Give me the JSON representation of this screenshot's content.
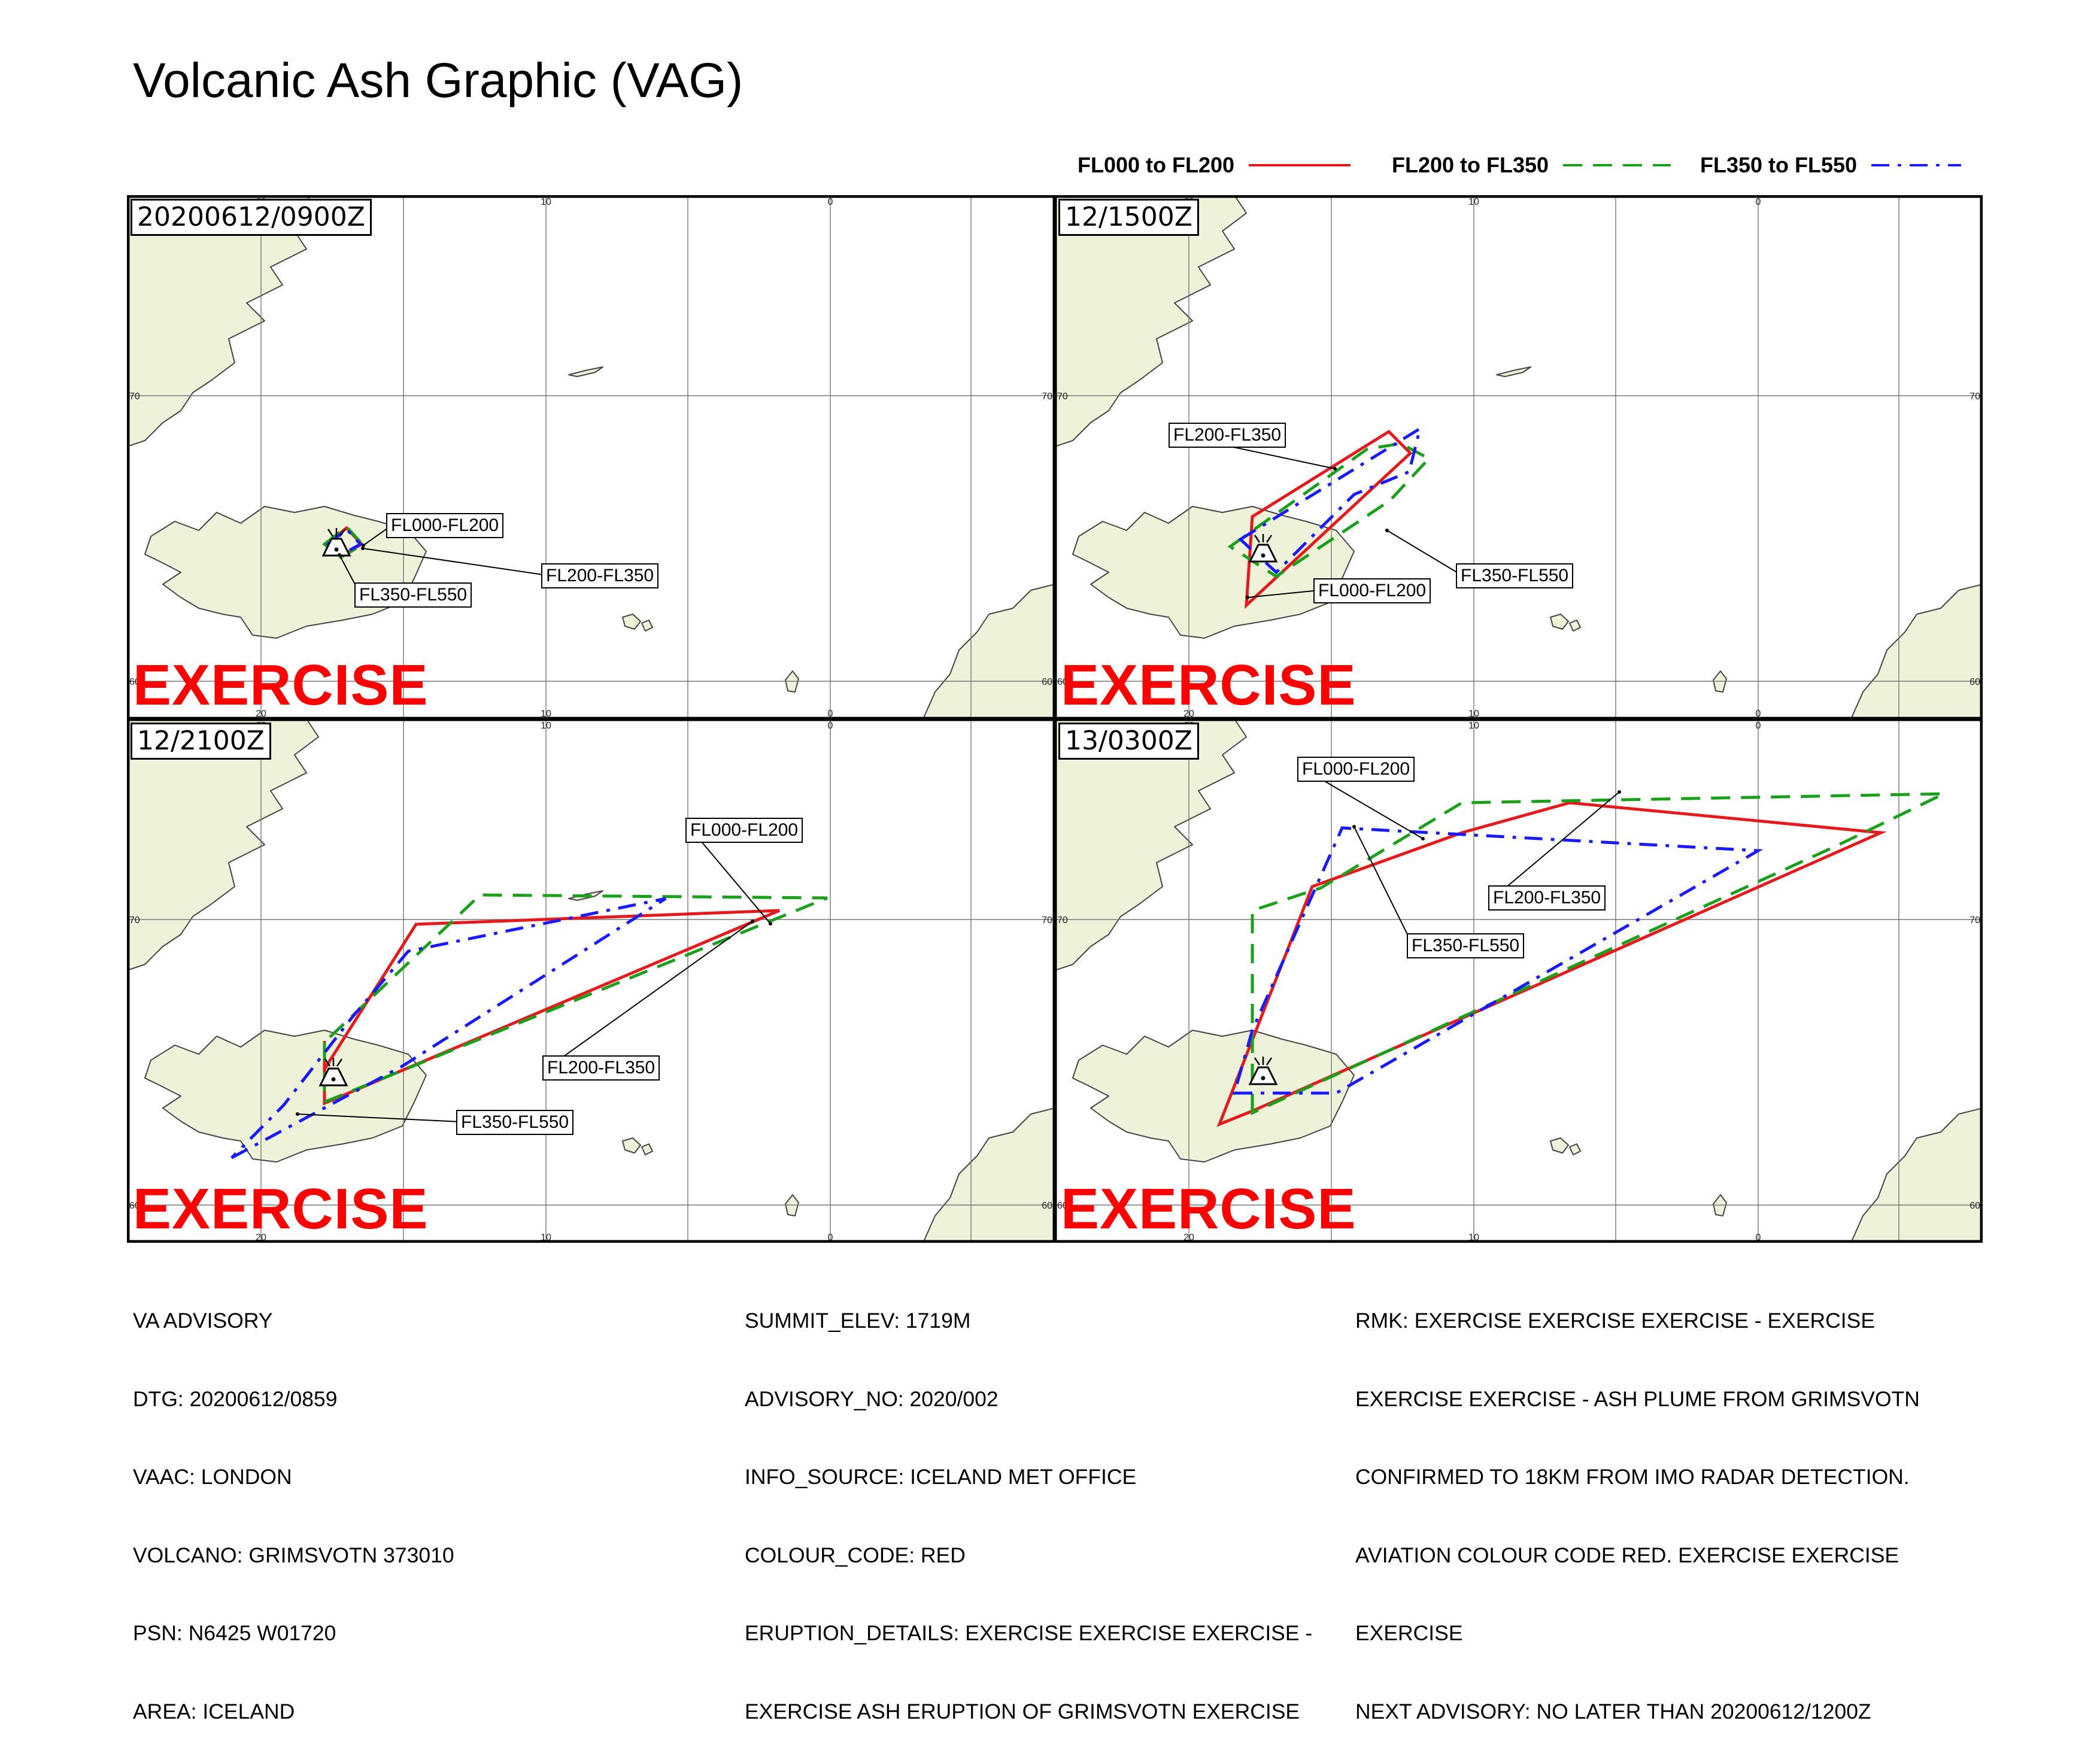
{
  "title": "Volcanic Ash Graphic (VAG)",
  "legend": [
    {
      "label": "FL000 to FL200",
      "color": "#e41a1c",
      "style": "solid"
    },
    {
      "label": "FL200 to FL350",
      "color": "#1aa01a",
      "style": "dashed"
    },
    {
      "label": "FL350 to FL550",
      "color": "#1a1aff",
      "style": "dash-dot"
    }
  ],
  "colors": {
    "land": "#eef2d8",
    "coast": "#444444",
    "grid": "#777777",
    "exercise": "#ff0000"
  },
  "panels": [
    {
      "time": "20200612/0900Z",
      "watermark": "EXERCISE",
      "labels": {
        "fl000": "FL000-FL200",
        "fl200": "FL200-FL350",
        "fl350": "FL350-FL550"
      }
    },
    {
      "time": "12/1500Z",
      "watermark": "EXERCISE",
      "labels": {
        "fl000": "FL000-FL200",
        "fl200": "FL200-FL350",
        "fl350": "FL350-FL550"
      }
    },
    {
      "time": "12/2100Z",
      "watermark": "EXERCISE",
      "labels": {
        "fl000": "FL000-FL200",
        "fl200": "FL200-FL350",
        "fl350": "FL350-FL550"
      }
    },
    {
      "time": "13/0300Z",
      "watermark": "EXERCISE",
      "labels": {
        "fl000": "FL000-FL200",
        "fl200": "FL200-FL350",
        "fl350": "FL350-FL550"
      }
    }
  ],
  "grid_labels": {
    "lon_20": "20",
    "lon_10": "10",
    "lon_0": "0",
    "lat_70": "70",
    "lat_60": "60"
  },
  "advisory": {
    "col1": [
      "VA ADVISORY",
      "DTG: 20200612/0859",
      "VAAC: LONDON",
      "VOLCANO: GRIMSVOTN 373010",
      "PSN: N6425 W01720",
      "AREA: ICELAND"
    ],
    "col2": [
      "SUMMIT_ELEV: 1719M",
      "ADVISORY_NO: 2020/002",
      "INFO_SOURCE: ICELAND MET OFFICE",
      "COLOUR_CODE: RED",
      "ERUPTION_DETAILS: EXERCISE EXERCISE EXERCISE -",
      "EXERCISE ASH ERUPTION OF GRIMSVOTN EXERCISE"
    ],
    "col3": [
      "RMK: EXERCISE EXERCISE EXERCISE - EXERCISE",
      "EXERCISE EXERCISE - ASH PLUME FROM GRIMSVOTN",
      "CONFIRMED TO 18KM FROM IMO RADAR DETECTION.",
      "AVIATION COLOUR CODE RED. EXERCISE EXERCISE",
      "EXERCISE",
      "NEXT ADVISORY: NO LATER THAN 20200612/1200Z"
    ]
  }
}
